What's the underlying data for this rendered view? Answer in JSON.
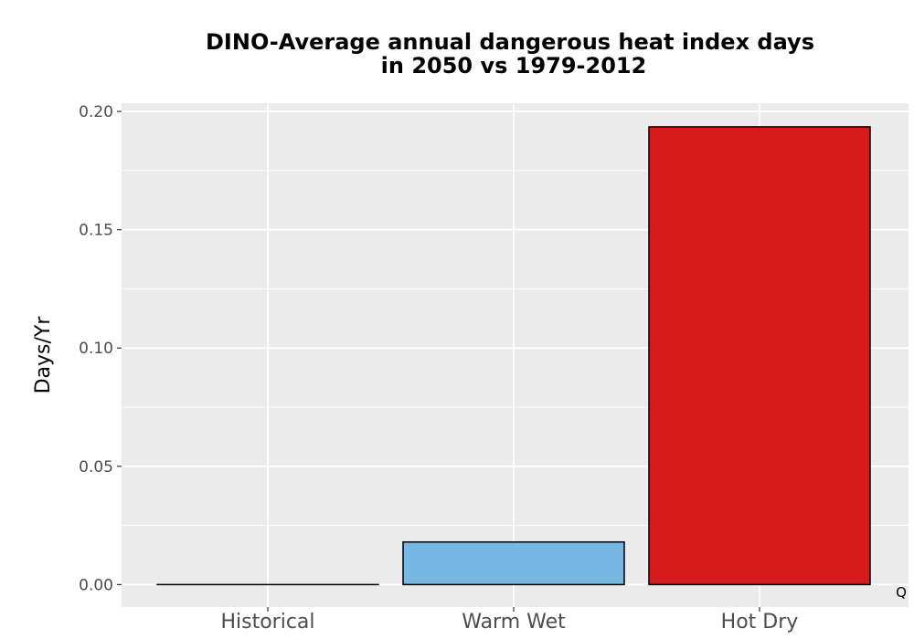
{
  "chart_data": {
    "type": "bar",
    "title_lines": [
      "DINO-Average annual dangerous heat index days",
      "in 2050 vs 1979-2012"
    ],
    "xlabel": "",
    "ylabel": "Days/Yr",
    "categories": [
      "Historical",
      "Warm Wet",
      "Hot Dry"
    ],
    "values": [
      0.0,
      0.018,
      0.1935
    ],
    "colors": [
      "#000000",
      "#76b8e2",
      "#d7191c"
    ],
    "ylim": [
      -0.0095,
      0.2035
    ],
    "yticks": [
      0.0,
      0.05,
      0.1,
      0.15,
      0.2
    ],
    "ytick_labels": [
      "0.00",
      "0.05",
      "0.10",
      "0.15",
      "0.20"
    ],
    "grid": true,
    "panel_background": "#ebebeb",
    "annotation": "Q"
  }
}
